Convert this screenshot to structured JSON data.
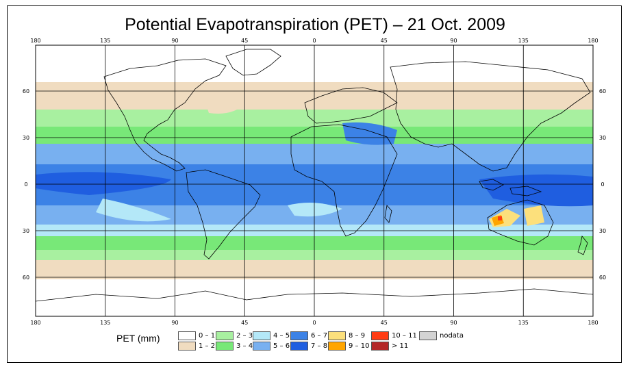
{
  "title": "Potential Evapotranspiration (PET) – 21 Oct. 2009",
  "axes": {
    "lon_labels": [
      "180",
      "135",
      "90",
      "45",
      "0",
      "45",
      "90",
      "135",
      "180"
    ],
    "lat_labels": [
      "60",
      "30",
      "0",
      "30",
      "60"
    ]
  },
  "legend": {
    "title": "PET (mm)",
    "items": [
      {
        "label": "0 – 1",
        "color": "#ffffff"
      },
      {
        "label": "1 – 2",
        "color": "#f0dcc0"
      },
      {
        "label": "2 – 3",
        "color": "#a8f0a0"
      },
      {
        "label": "3 – 4",
        "color": "#78e878"
      },
      {
        "label": "4 – 5",
        "color": "#b4e8f8"
      },
      {
        "label": "5 – 6",
        "color": "#78b0f0"
      },
      {
        "label": "6 – 7",
        "color": "#3c82e6"
      },
      {
        "label": "7 – 8",
        "color": "#1f5ee0"
      },
      {
        "label": "8 – 9",
        "color": "#fce07c"
      },
      {
        "label": "9 – 10",
        "color": "#ffa500"
      },
      {
        "label": "10 – 11",
        "color": "#ff3c14"
      },
      {
        "label": "> 11",
        "color": "#b42828"
      },
      {
        "label": "nodata",
        "color": "#d3d3d3"
      }
    ]
  }
}
